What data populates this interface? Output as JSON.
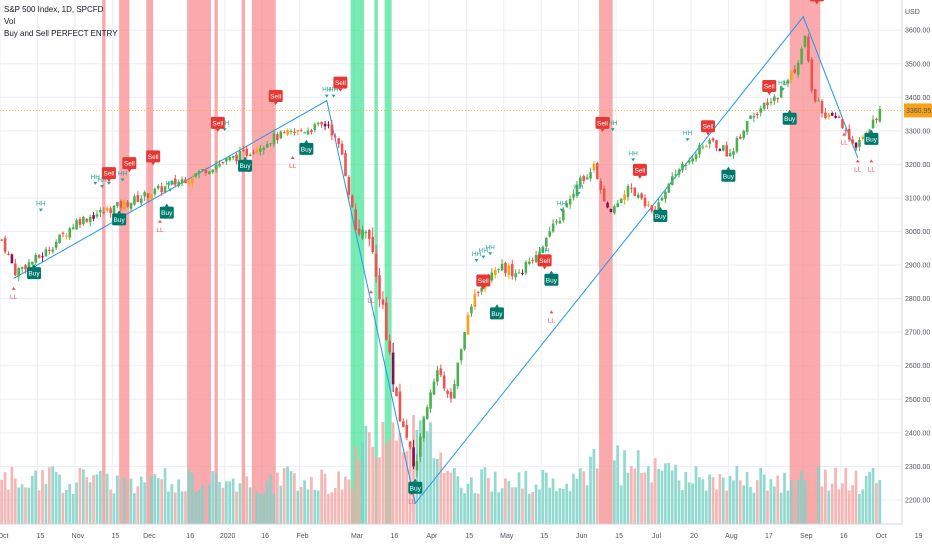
{
  "header": {
    "symbol_line": "S&P 500 Index, 1D, SPCFD",
    "indicator_1": "Vol",
    "indicator_2": "Buy and Sell PERFECT ENTRY"
  },
  "price_axis": {
    "currency": "USD",
    "last_price_label": "3360.95",
    "ticks": [
      "3600.00",
      "3500.00",
      "3400.00",
      "3300.00",
      "3200.00",
      "3100.00",
      "3000.00",
      "2900.00",
      "2800.00",
      "2700.00",
      "2600.00",
      "2500.00",
      "2400.00",
      "2300.00",
      "2200.00"
    ]
  },
  "time_axis": {
    "labels": [
      "Oct",
      "15",
      "Nov",
      "15",
      "Dec",
      "16",
      "2020",
      "16",
      "Feb",
      "Mar",
      "16",
      "Apr",
      "15",
      "May",
      "15",
      "Jun",
      "15",
      "Jul",
      "20",
      "Aug",
      "17",
      "Sep",
      "16",
      "Oct",
      "19"
    ]
  },
  "chart_data": {
    "type": "candlestick",
    "title": "S&P 500 Index, 1D, SPCFD",
    "ylim": [
      2170,
      3690
    ],
    "y_ticks": [
      2200,
      2300,
      2400,
      2500,
      2600,
      2700,
      2800,
      2900,
      3000,
      3100,
      3200,
      3300,
      3400,
      3500,
      3600
    ],
    "last_price": 3360.95,
    "close_path": [
      {
        "day": 0,
        "value": 2975
      },
      {
        "day": 4,
        "value": 2880
      },
      {
        "day": 12,
        "value": 2930
      },
      {
        "day": 22,
        "value": 3030
      },
      {
        "day": 38,
        "value": 3090
      },
      {
        "day": 50,
        "value": 3140
      },
      {
        "day": 62,
        "value": 3195
      },
      {
        "day": 72,
        "value": 3235
      },
      {
        "day": 80,
        "value": 3280
      },
      {
        "day": 88,
        "value": 3300
      },
      {
        "day": 96,
        "value": 3320
      },
      {
        "day": 100,
        "value": 3230
      },
      {
        "day": 104,
        "value": 3010
      },
      {
        "day": 108,
        "value": 2960
      },
      {
        "day": 112,
        "value": 2760
      },
      {
        "day": 116,
        "value": 2480
      },
      {
        "day": 120,
        "value": 2350
      },
      {
        "day": 122,
        "value": 2290
      },
      {
        "day": 124,
        "value": 2460
      },
      {
        "day": 128,
        "value": 2580
      },
      {
        "day": 132,
        "value": 2500
      },
      {
        "day": 136,
        "value": 2710
      },
      {
        "day": 140,
        "value": 2830
      },
      {
        "day": 146,
        "value": 2900
      },
      {
        "day": 152,
        "value": 2870
      },
      {
        "day": 158,
        "value": 2950
      },
      {
        "day": 164,
        "value": 3040
      },
      {
        "day": 170,
        "value": 3150
      },
      {
        "day": 174,
        "value": 3200
      },
      {
        "day": 178,
        "value": 3060
      },
      {
        "day": 184,
        "value": 3130
      },
      {
        "day": 188,
        "value": 3100
      },
      {
        "day": 192,
        "value": 3050
      },
      {
        "day": 196,
        "value": 3150
      },
      {
        "day": 202,
        "value": 3220
      },
      {
        "day": 208,
        "value": 3270
      },
      {
        "day": 214,
        "value": 3230
      },
      {
        "day": 220,
        "value": 3350
      },
      {
        "day": 226,
        "value": 3380
      },
      {
        "day": 230,
        "value": 3440
      },
      {
        "day": 234,
        "value": 3500
      },
      {
        "day": 236,
        "value": 3580
      },
      {
        "day": 238,
        "value": 3420
      },
      {
        "day": 242,
        "value": 3340
      },
      {
        "day": 246,
        "value": 3330
      },
      {
        "day": 250,
        "value": 3250
      },
      {
        "day": 254,
        "value": 3300
      },
      {
        "day": 258,
        "value": 3360
      }
    ],
    "trend_line": [
      {
        "day": 4,
        "value": 2860
      },
      {
        "day": 96,
        "value": 3390
      },
      {
        "day": 122,
        "value": 2190
      },
      {
        "day": 236,
        "value": 3640
      },
      {
        "day": 252,
        "value": 3220
      }
    ],
    "highlight_bands": [
      {
        "from": 30,
        "to": 31,
        "color": "#f77c80"
      },
      {
        "from": 35,
        "to": 38,
        "color": "#f77c80"
      },
      {
        "from": 43,
        "to": 45,
        "color": "#f77c80"
      },
      {
        "from": 55,
        "to": 62,
        "color": "#f77c80"
      },
      {
        "from": 63,
        "to": 64,
        "color": "#f77c80"
      },
      {
        "from": 71,
        "to": 72,
        "color": "#f77c80"
      },
      {
        "from": 74,
        "to": 81,
        "color": "#f77c80"
      },
      {
        "from": 103,
        "to": 107,
        "color": "#2ee08a"
      },
      {
        "from": 110,
        "to": 111,
        "color": "#2ee08a"
      },
      {
        "from": 113,
        "to": 115,
        "color": "#2ee08a"
      },
      {
        "from": 176,
        "to": 180,
        "color": "#f77c80"
      },
      {
        "from": 232,
        "to": 241,
        "color": "#f77c80"
      }
    ],
    "signals": [
      {
        "type": "Buy",
        "day": 10,
        "value": 2900
      },
      {
        "type": "Buy",
        "day": 35,
        "value": 3060
      },
      {
        "type": "Buy",
        "day": 49,
        "value": 3080
      },
      {
        "type": "Buy",
        "day": 72,
        "value": 3220
      },
      {
        "type": "Buy",
        "day": 90,
        "value": 3270
      },
      {
        "type": "Buy",
        "day": 122,
        "value": 2260
      },
      {
        "type": "Buy",
        "day": 146,
        "value": 2780
      },
      {
        "type": "Buy",
        "day": 162,
        "value": 2880
      },
      {
        "type": "Buy",
        "day": 194,
        "value": 3070
      },
      {
        "type": "Buy",
        "day": 214,
        "value": 3190
      },
      {
        "type": "Buy",
        "day": 232,
        "value": 3360
      },
      {
        "type": "Buy",
        "day": 256,
        "value": 3300
      },
      {
        "type": "Sell",
        "day": 32,
        "value": 3150
      },
      {
        "type": "Sell",
        "day": 38,
        "value": 3180
      },
      {
        "type": "Sell",
        "day": 45,
        "value": 3200
      },
      {
        "type": "Sell",
        "day": 64,
        "value": 3300
      },
      {
        "type": "Sell",
        "day": 81,
        "value": 3380
      },
      {
        "type": "Sell",
        "day": 100,
        "value": 3420
      },
      {
        "type": "Sell",
        "day": 142,
        "value": 2830
      },
      {
        "type": "Sell",
        "day": 160,
        "value": 2890
      },
      {
        "type": "Sell",
        "day": 177,
        "value": 3300
      },
      {
        "type": "Sell",
        "day": 188,
        "value": 3160
      },
      {
        "type": "Sell",
        "day": 208,
        "value": 3290
      },
      {
        "type": "Sell",
        "day": 226,
        "value": 3410
      },
      {
        "type": "Sell",
        "day": 240,
        "value": 3680
      }
    ],
    "pivot_labels": [
      {
        "text": "HH",
        "day": 12,
        "value": 3080
      },
      {
        "text": "HH",
        "day": 28,
        "value": 3160
      },
      {
        "text": "HH",
        "day": 30,
        "value": 3150
      },
      {
        "text": "HH",
        "day": 32,
        "value": 3160
      },
      {
        "text": "HH",
        "day": 36,
        "value": 3170
      },
      {
        "text": "HH",
        "day": 38,
        "value": 3200
      },
      {
        "text": "HH",
        "day": 50,
        "value": 3140
      },
      {
        "text": "HH",
        "day": 64,
        "value": 3330
      },
      {
        "text": "HH",
        "day": 66,
        "value": 3320
      },
      {
        "text": "HH",
        "day": 96,
        "value": 3420
      },
      {
        "text": "HH",
        "day": 98,
        "value": 3420
      },
      {
        "text": "HH",
        "day": 140,
        "value": 2930
      },
      {
        "text": "HH",
        "day": 142,
        "value": 2940
      },
      {
        "text": "HH",
        "day": 144,
        "value": 2950
      },
      {
        "text": "HH",
        "day": 160,
        "value": 2940
      },
      {
        "text": "HH",
        "day": 165,
        "value": 3080
      },
      {
        "text": "HH",
        "day": 170,
        "value": 3130
      },
      {
        "text": "HH",
        "day": 178,
        "value": 3330
      },
      {
        "text": "HH",
        "day": 180,
        "value": 3320
      },
      {
        "text": "HH",
        "day": 186,
        "value": 3230
      },
      {
        "text": "HH",
        "day": 202,
        "value": 3290
      },
      {
        "text": "HH",
        "day": 226,
        "value": 3440
      },
      {
        "text": "HH",
        "day": 230,
        "value": 3440
      },
      {
        "text": "LL",
        "day": 4,
        "value": 2820
      },
      {
        "text": "LL",
        "day": 47,
        "value": 3020
      },
      {
        "text": "LL",
        "day": 86,
        "value": 3210
      },
      {
        "text": "LL",
        "day": 109,
        "value": 2810
      },
      {
        "text": "LL",
        "day": 121,
        "value": 2210
      },
      {
        "text": "LL",
        "day": 162,
        "value": 2750
      },
      {
        "text": "LL",
        "day": 248,
        "value": 3280
      },
      {
        "text": "LL",
        "day": 252,
        "value": 3200
      },
      {
        "text": "LL",
        "day": 256,
        "value": 3200
      }
    ]
  },
  "colors": {
    "up": "#26a69a",
    "up_light": "#4caf50",
    "down": "#ef5350",
    "neutral_up": "#f7a21b",
    "neutral_down": "#880e4f",
    "volume_up": "#7fd3c8",
    "volume_down": "#f4a9a8",
    "sell_band": "#f77c80",
    "buy_band": "#2ee08a",
    "trend_line": "#2196f3",
    "last_price": "#f7a21b",
    "grid": "#eceef2"
  }
}
